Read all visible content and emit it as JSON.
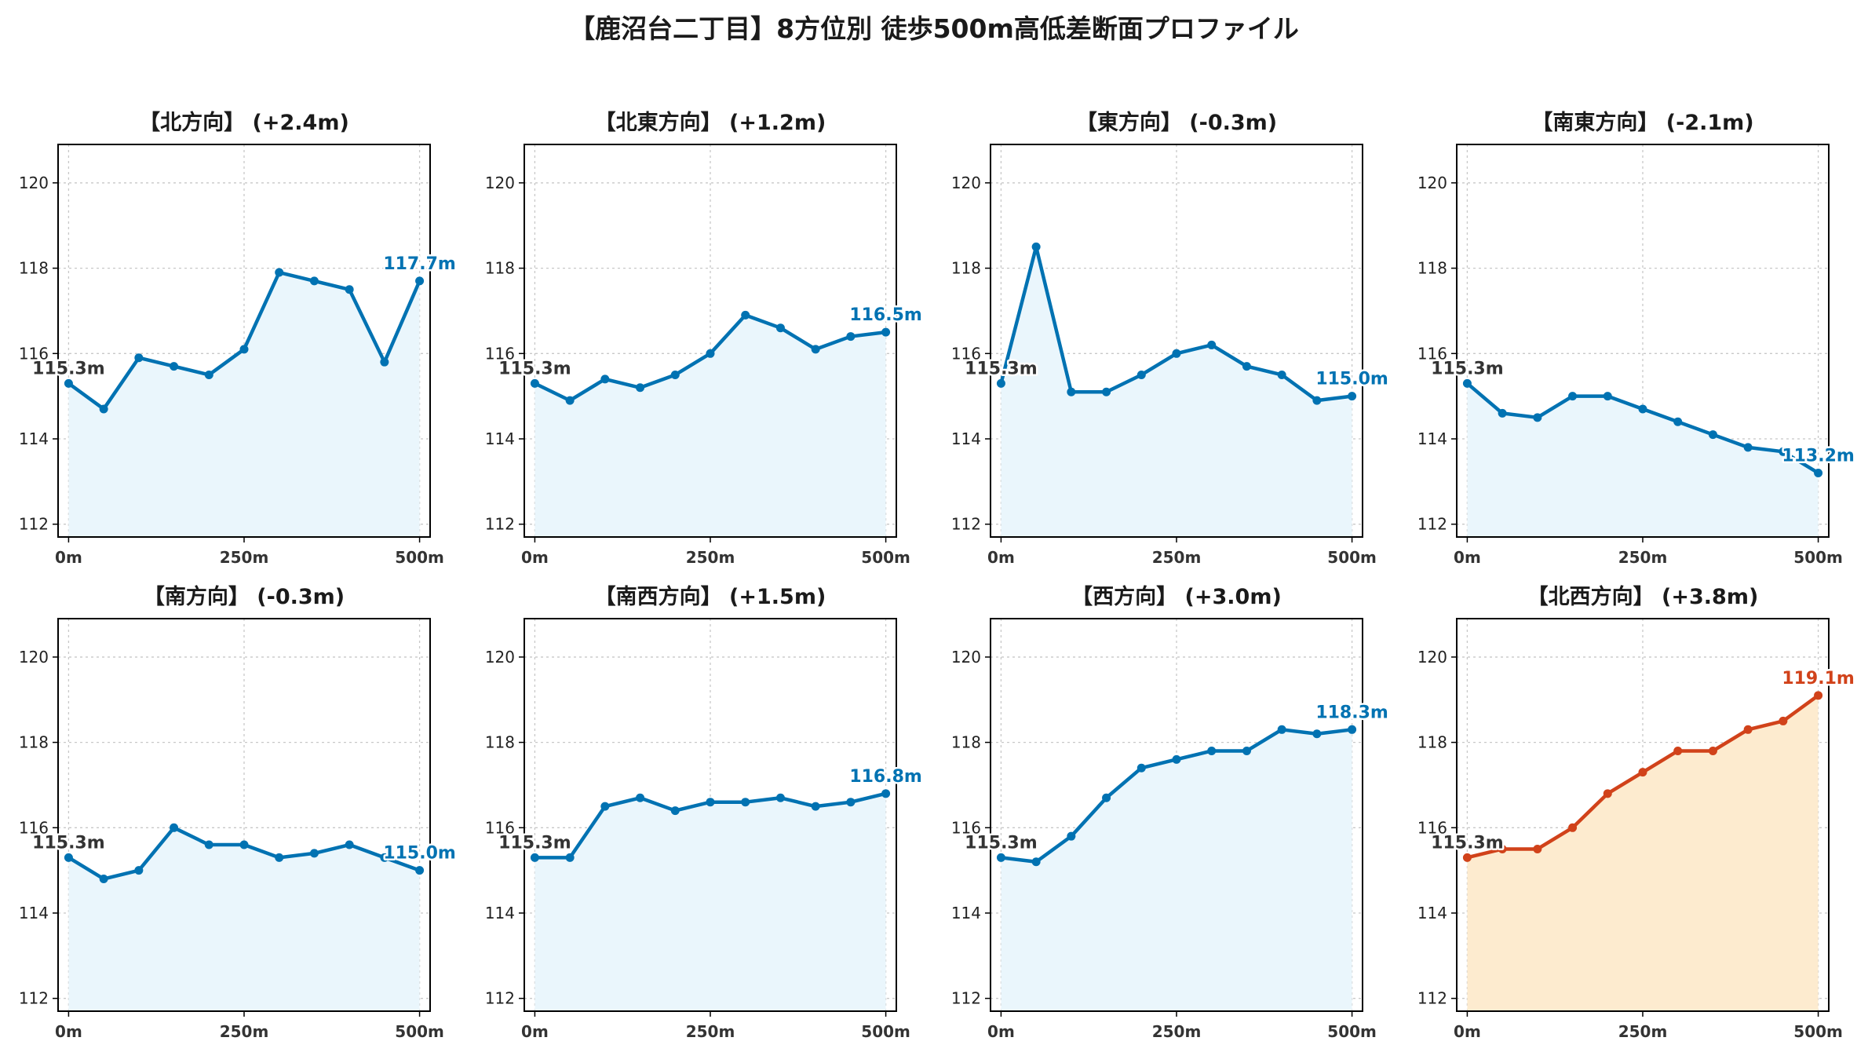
{
  "title": "【鹿沼台二丁目】8方位別 徒歩500m高低差断面プロファイル",
  "chart_data": [
    {
      "type": "line",
      "title": "【北方向】 (+2.4m)",
      "color": "#0072b2",
      "fill": "#eaf6fc",
      "x": [
        0,
        50,
        100,
        150,
        200,
        250,
        300,
        350,
        400,
        450,
        500
      ],
      "y": [
        115.3,
        114.7,
        115.9,
        115.7,
        115.5,
        116.1,
        117.9,
        117.7,
        117.5,
        115.8,
        117.7
      ],
      "start_label": "115.3m",
      "end_label": "117.7m",
      "xticks": [
        "0m",
        "250m",
        "500m"
      ],
      "yticks": [
        112,
        114,
        116,
        118,
        120
      ],
      "ylim": [
        111.7,
        120.9
      ],
      "xlim": [
        -15,
        515
      ],
      "grid": true
    },
    {
      "type": "line",
      "title": "【北東方向】 (+1.2m)",
      "color": "#0072b2",
      "fill": "#eaf6fc",
      "x": [
        0,
        50,
        100,
        150,
        200,
        250,
        300,
        350,
        400,
        450,
        500
      ],
      "y": [
        115.3,
        114.9,
        115.4,
        115.2,
        115.5,
        116.0,
        116.9,
        116.6,
        116.1,
        116.4,
        116.5
      ],
      "start_label": "115.3m",
      "end_label": "116.5m",
      "xticks": [
        "0m",
        "250m",
        "500m"
      ],
      "yticks": [
        112,
        114,
        116,
        118,
        120
      ],
      "ylim": [
        111.7,
        120.9
      ],
      "xlim": [
        -15,
        515
      ],
      "grid": true
    },
    {
      "type": "line",
      "title": "【東方向】 (-0.3m)",
      "color": "#0072b2",
      "fill": "#eaf6fc",
      "x": [
        0,
        50,
        100,
        150,
        200,
        250,
        300,
        350,
        400,
        450,
        500
      ],
      "y": [
        115.3,
        118.5,
        115.1,
        115.1,
        115.5,
        116.0,
        116.2,
        115.7,
        115.5,
        114.9,
        115.0
      ],
      "start_label": "115.3m",
      "end_label": "115.0m",
      "xticks": [
        "0m",
        "250m",
        "500m"
      ],
      "yticks": [
        112,
        114,
        116,
        118,
        120
      ],
      "ylim": [
        111.7,
        120.9
      ],
      "xlim": [
        -15,
        515
      ],
      "grid": true
    },
    {
      "type": "line",
      "title": "【南東方向】 (-2.1m)",
      "color": "#0072b2",
      "fill": "#eaf6fc",
      "x": [
        0,
        50,
        100,
        150,
        200,
        250,
        300,
        350,
        400,
        450,
        500
      ],
      "y": [
        115.3,
        114.6,
        114.5,
        115.0,
        115.0,
        114.7,
        114.4,
        114.1,
        113.8,
        113.7,
        113.2
      ],
      "start_label": "115.3m",
      "end_label": "113.2m",
      "xticks": [
        "0m",
        "250m",
        "500m"
      ],
      "yticks": [
        112,
        114,
        116,
        118,
        120
      ],
      "ylim": [
        111.7,
        120.9
      ],
      "xlim": [
        -15,
        515
      ],
      "grid": true
    },
    {
      "type": "line",
      "title": "【南方向】 (-0.3m)",
      "color": "#0072b2",
      "fill": "#eaf6fc",
      "x": [
        0,
        50,
        100,
        150,
        200,
        250,
        300,
        350,
        400,
        450,
        500
      ],
      "y": [
        115.3,
        114.8,
        115.0,
        116.0,
        115.6,
        115.6,
        115.3,
        115.4,
        115.6,
        115.3,
        115.0
      ],
      "start_label": "115.3m",
      "end_label": "115.0m",
      "xticks": [
        "0m",
        "250m",
        "500m"
      ],
      "yticks": [
        112,
        114,
        116,
        118,
        120
      ],
      "ylim": [
        111.7,
        120.9
      ],
      "xlim": [
        -15,
        515
      ],
      "grid": true
    },
    {
      "type": "line",
      "title": "【南西方向】 (+1.5m)",
      "color": "#0072b2",
      "fill": "#eaf6fc",
      "x": [
        0,
        50,
        100,
        150,
        200,
        250,
        300,
        350,
        400,
        450,
        500
      ],
      "y": [
        115.3,
        115.3,
        116.5,
        116.7,
        116.4,
        116.6,
        116.6,
        116.7,
        116.5,
        116.6,
        116.8
      ],
      "start_label": "115.3m",
      "end_label": "116.8m",
      "xticks": [
        "0m",
        "250m",
        "500m"
      ],
      "yticks": [
        112,
        114,
        116,
        118,
        120
      ],
      "ylim": [
        111.7,
        120.9
      ],
      "xlim": [
        -15,
        515
      ],
      "grid": true
    },
    {
      "type": "line",
      "title": "【西方向】 (+3.0m)",
      "color": "#0072b2",
      "fill": "#eaf6fc",
      "x": [
        0,
        50,
        100,
        150,
        200,
        250,
        300,
        350,
        400,
        450,
        500
      ],
      "y": [
        115.3,
        115.2,
        115.8,
        116.7,
        117.4,
        117.6,
        117.8,
        117.8,
        118.3,
        118.2,
        118.3
      ],
      "start_label": "115.3m",
      "end_label": "118.3m",
      "xticks": [
        "0m",
        "250m",
        "500m"
      ],
      "yticks": [
        112,
        114,
        116,
        118,
        120
      ],
      "ylim": [
        111.7,
        120.9
      ],
      "xlim": [
        -15,
        515
      ],
      "grid": true
    },
    {
      "type": "line",
      "title": "【北西方向】 (+3.8m)",
      "color": "#d1421a",
      "fill": "#fdebcf",
      "x": [
        0,
        50,
        100,
        150,
        200,
        250,
        300,
        350,
        400,
        450,
        500
      ],
      "y": [
        115.3,
        115.5,
        115.5,
        116.0,
        116.8,
        117.3,
        117.8,
        117.8,
        118.3,
        118.5,
        119.1
      ],
      "start_label": "115.3m",
      "end_label": "119.1m",
      "xticks": [
        "0m",
        "250m",
        "500m"
      ],
      "yticks": [
        112,
        114,
        116,
        118,
        120
      ],
      "ylim": [
        111.7,
        120.9
      ],
      "xlim": [
        -15,
        515
      ],
      "grid": true
    }
  ]
}
